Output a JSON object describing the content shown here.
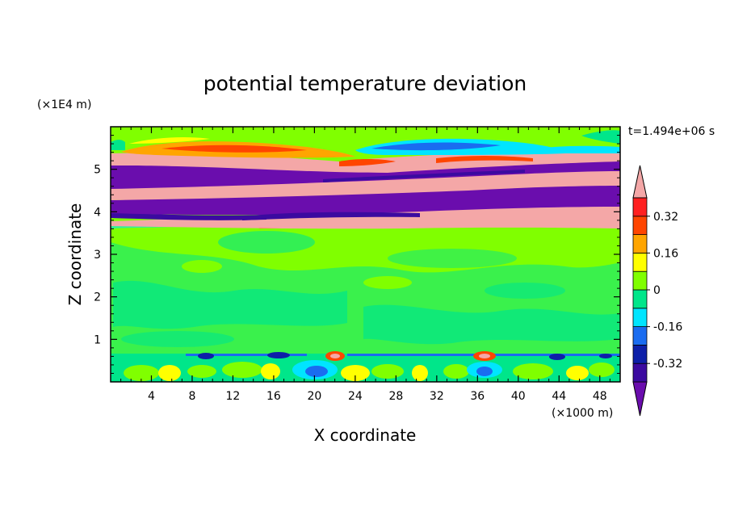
{
  "chart_data": {
    "type": "heatmap",
    "title": "potential temperature deviation",
    "time_label": "t=1.494e+06 s",
    "xlabel": "X coordinate",
    "ylabel": "Z coordinate",
    "x_unit": "(×1000 m)",
    "y_unit": "(×1E4 m)",
    "xlim": [
      0,
      50
    ],
    "ylim": [
      0,
      6
    ],
    "x_ticks": [
      "4",
      "8",
      "12",
      "16",
      "20",
      "24",
      "28",
      "32",
      "36",
      "40",
      "44",
      "48"
    ],
    "y_ticks": [
      "1",
      "2",
      "3",
      "4",
      "5"
    ],
    "colorbar": {
      "tick_labels": [
        "0.32",
        "0.16",
        "0",
        "-0.16",
        "-0.32"
      ],
      "levels": [
        -0.4,
        -0.32,
        -0.24,
        -0.16,
        -0.08,
        0,
        0.08,
        0.16,
        0.24,
        0.32,
        0.4
      ],
      "colors": [
        "#6a0dad",
        "#3b0aa0",
        "#0d1fa8",
        "#1a6cf0",
        "#00e5ff",
        "#00e68a",
        "#80ff00",
        "#ffff00",
        "#ffa500",
        "#ff4500",
        "#ff2020",
        "#f4a7a7"
      ]
    },
    "bands": [
      {
        "z": [
          0.0,
          0.6
        ],
        "character": "mixed low-level perturbations"
      },
      {
        "z": [
          0.6,
          3.6
        ],
        "character": "near zero"
      },
      {
        "z": [
          3.6,
          4.0
        ],
        "character": "positive"
      },
      {
        "z": [
          4.0,
          4.3
        ],
        "character": "negative"
      },
      {
        "z": [
          4.3,
          4.6
        ],
        "character": "positive"
      },
      {
        "z": [
          4.6,
          5.0
        ],
        "character": "negative"
      },
      {
        "z": [
          5.0,
          5.3
        ],
        "character": "positive"
      },
      {
        "z": [
          5.3,
          6.0
        ],
        "character": "mixed"
      }
    ]
  }
}
